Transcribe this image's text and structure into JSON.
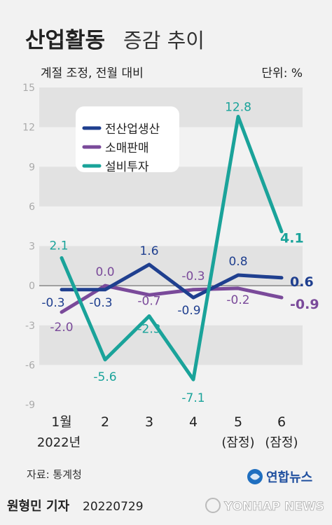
{
  "header": {
    "title_bold": "산업활동",
    "title_regular": "증감 추이",
    "subtitle": "계절 조정, 전월 대비",
    "unit": "단위: %"
  },
  "chart_data": {
    "type": "line",
    "categories": [
      "1월",
      "2",
      "3",
      "4",
      "5",
      "6"
    ],
    "category_sublabels": [
      "2022년",
      "",
      "",
      "",
      "(잠정)",
      "(잠정)"
    ],
    "ylim": [
      -9,
      15
    ],
    "yticks": [
      15,
      12,
      9,
      6,
      3,
      0,
      -3,
      -6,
      -9
    ],
    "grid": "alternating bands",
    "legend_position": "top-left",
    "series": [
      {
        "name": "전산업생산",
        "values": [
          -0.3,
          -0.3,
          1.6,
          -0.9,
          0.8,
          0.6
        ],
        "color": "#1f3f8f",
        "labels": [
          "-0.3",
          "-0.3",
          "1.6",
          "-0.9",
          "0.8",
          "0.6"
        ]
      },
      {
        "name": "소매판매",
        "values": [
          -2.0,
          0.0,
          -0.7,
          -0.3,
          -0.2,
          -0.9
        ],
        "color": "#7a4a9a",
        "labels": [
          "-2.0",
          "0.0",
          "-0.7",
          "-0.3",
          "-0.2",
          "-0.9"
        ]
      },
      {
        "name": "설비투자",
        "values": [
          2.1,
          -5.6,
          -2.3,
          -7.1,
          12.8,
          4.1
        ],
        "color": "#1aa39a",
        "labels": [
          "2.1",
          "-5.6",
          "-2.3",
          "-7.1",
          "12.8",
          "4.1"
        ]
      }
    ]
  },
  "footer": {
    "source": "자료: 통계청",
    "brand": "연합뉴스",
    "reporter": "원형민 기자",
    "date": "20220729",
    "watermark": "YONHAP NEWS"
  }
}
